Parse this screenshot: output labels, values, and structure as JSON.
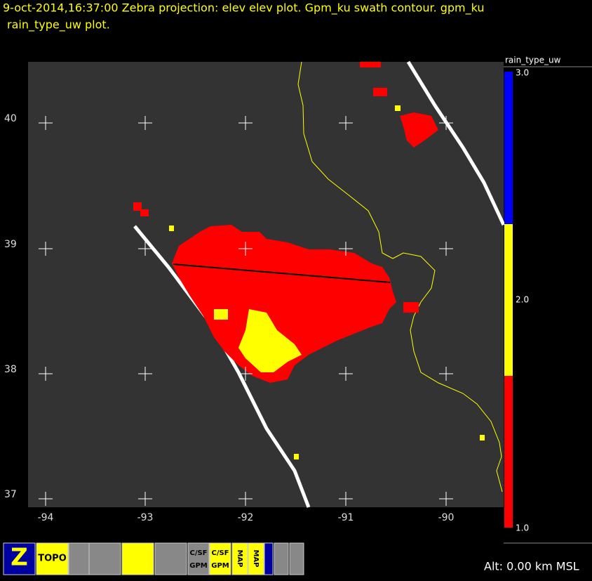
{
  "header": {
    "line1": "9-oct-2014,16:37:00  Zebra projection: elev elev  plot.  Gpm_ku swath contour.  gpm_ku",
    "line2": "rain_type_uw  plot."
  },
  "plot": {
    "lon_labels": [
      "-94",
      "-93",
      "-92",
      "-91",
      "-90"
    ],
    "lat_labels": [
      "40",
      "39",
      "38",
      "37"
    ]
  },
  "colorbar": {
    "title": "rain_type_uw",
    "labels": [
      "3.0",
      "2.0",
      "1.0"
    ]
  },
  "status": {
    "altitude": "Alt: 0.00 km MSL"
  },
  "toolbar": {
    "icons": [
      "Z",
      "TOPO",
      "C/SF",
      "GPM",
      "C/SF",
      "GPM",
      "MAP",
      "MAP"
    ]
  }
}
